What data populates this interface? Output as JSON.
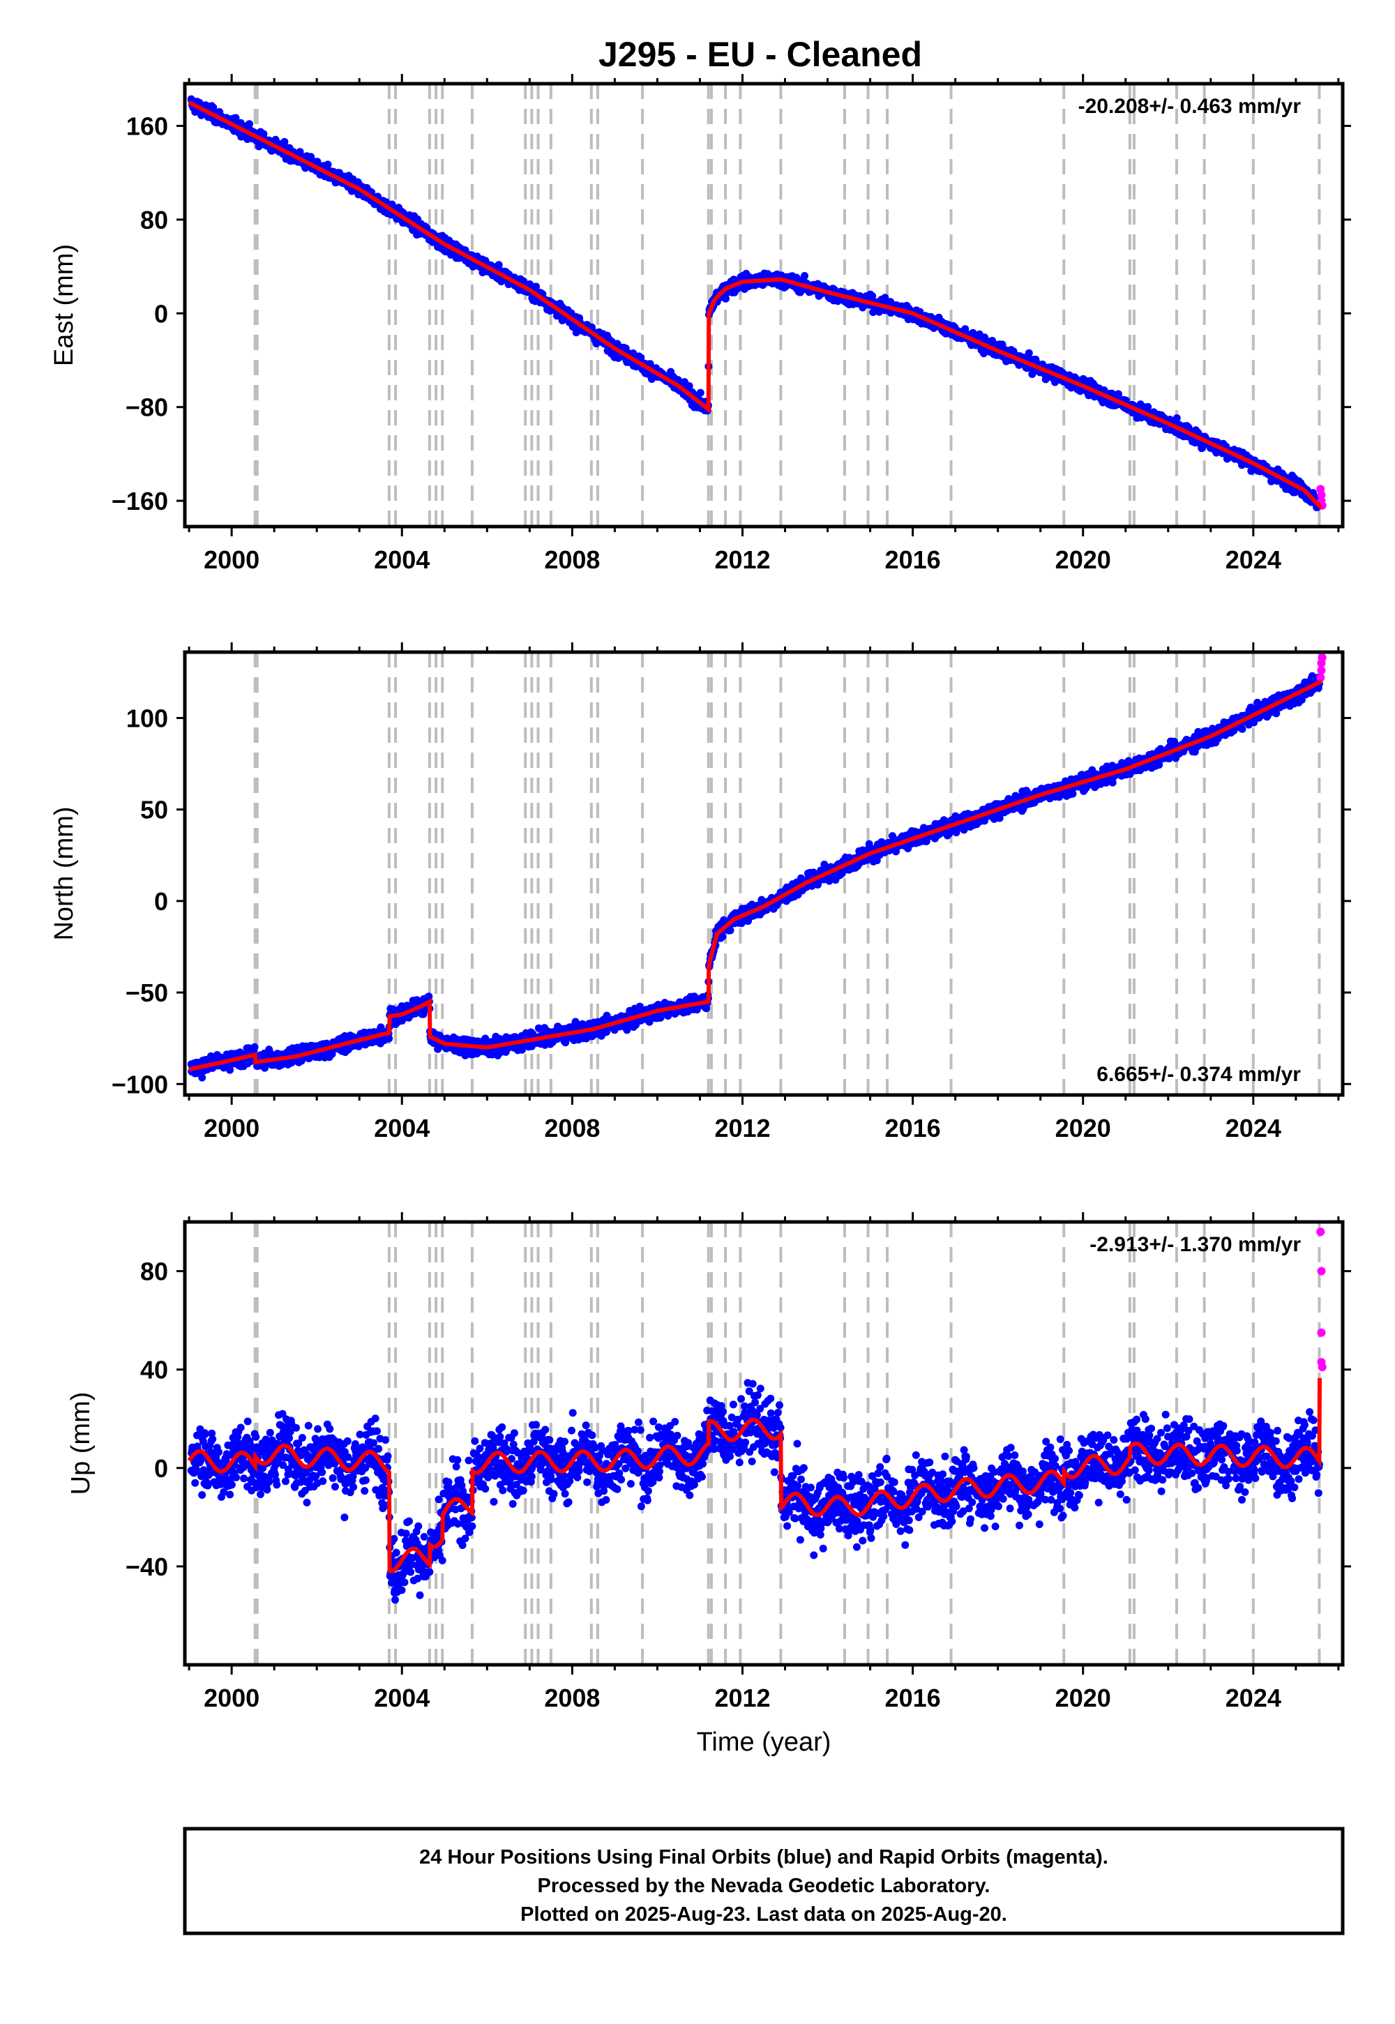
{
  "title": "J295  - EU - Cleaned",
  "xlabel": "Time (year)",
  "footer": {
    "line1": "24 Hour Positions Using Final Orbits (blue) and Rapid Orbits (magenta).",
    "line2": "Processed by the Nevada Geodetic Laboratory.",
    "line3": "Plotted on 2025-Aug-23. Last data on 2025-Aug-20."
  },
  "colors": {
    "final": "#0000ff",
    "rapid": "#ff00ff",
    "model": "#ff0000",
    "event": "#bdbdbd",
    "axis": "#000000"
  },
  "chart_data": [
    {
      "type": "scatter",
      "ylabel": "East (mm)",
      "rate": "-20.208+/- 0.463 mm/yr",
      "rate_position": "top-right",
      "xlim": [
        1998.9,
        2026.1
      ],
      "ylim": [
        -182,
        196
      ],
      "xticks": [
        2000,
        2004,
        2008,
        2012,
        2016,
        2020,
        2024
      ],
      "yticks": [
        -160,
        -80,
        0,
        80,
        160
      ],
      "ytick_labels": [
        "−160",
        "−80",
        "0",
        "80",
        "160"
      ],
      "event_years": [
        2000.55,
        2000.6,
        2003.7,
        2003.85,
        2004.65,
        2004.8,
        2004.95,
        2005.65,
        2006.9,
        2007.05,
        2007.2,
        2007.5,
        2008.45,
        2008.6,
        2009.65,
        2011.2,
        2011.27,
        2011.6,
        2011.95,
        2012.9,
        2014.4,
        2014.95,
        2015.4,
        2016.9,
        2019.55,
        2021.1,
        2021.2,
        2022.2,
        2022.85,
        2024.0,
        2025.55
      ],
      "model": [
        {
          "x": 1999.0,
          "y": 180
        },
        {
          "x": 2001.0,
          "y": 143
        },
        {
          "x": 2003.0,
          "y": 106
        },
        {
          "x": 2005.0,
          "y": 59
        },
        {
          "x": 2007.0,
          "y": 20
        },
        {
          "x": 2009.0,
          "y": -30
        },
        {
          "x": 2010.5,
          "y": -62
        },
        {
          "x": 2011.2,
          "y": -82
        },
        {
          "x": 2011.21,
          "y": 0
        },
        {
          "x": 2011.35,
          "y": 12
        },
        {
          "x": 2011.6,
          "y": 21
        },
        {
          "x": 2012.0,
          "y": 27
        },
        {
          "x": 2012.9,
          "y": 29
        },
        {
          "x": 2014.0,
          "y": 18
        },
        {
          "x": 2016.0,
          "y": 0
        },
        {
          "x": 2018.0,
          "y": -32
        },
        {
          "x": 2020.0,
          "y": -62
        },
        {
          "x": 2022.0,
          "y": -94
        },
        {
          "x": 2024.0,
          "y": -128
        },
        {
          "x": 2025.2,
          "y": -151
        },
        {
          "x": 2025.6,
          "y": -166
        }
      ],
      "scatter": 4,
      "rapid": [
        {
          "x": 2025.58,
          "y": -150
        },
        {
          "x": 2025.6,
          "y": -155
        },
        {
          "x": 2025.6,
          "y": -160
        },
        {
          "x": 2025.62,
          "y": -164
        }
      ]
    },
    {
      "type": "scatter",
      "ylabel": "North (mm)",
      "rate": "6.665+/- 0.374 mm/yr",
      "rate_position": "bottom-right",
      "xlim": [
        1998.9,
        2026.1
      ],
      "ylim": [
        -106,
        136
      ],
      "xticks": [
        2000,
        2004,
        2008,
        2012,
        2016,
        2020,
        2024
      ],
      "yticks": [
        -100,
        -50,
        0,
        50,
        100
      ],
      "ytick_labels": [
        "−100",
        "−50",
        "0",
        "50",
        "100"
      ],
      "event_years": [
        2000.55,
        2000.6,
        2003.7,
        2003.85,
        2004.65,
        2004.8,
        2004.95,
        2005.65,
        2006.9,
        2007.05,
        2007.2,
        2007.5,
        2008.45,
        2008.6,
        2009.65,
        2011.2,
        2011.27,
        2011.6,
        2011.95,
        2012.9,
        2014.4,
        2014.95,
        2015.4,
        2016.9,
        2019.55,
        2021.1,
        2021.2,
        2022.2,
        2022.85,
        2024.0,
        2025.55
      ],
      "model": [
        {
          "x": 1999.0,
          "y": -92
        },
        {
          "x": 2000.0,
          "y": -87
        },
        {
          "x": 2000.55,
          "y": -84
        },
        {
          "x": 2000.56,
          "y": -88
        },
        {
          "x": 2001.5,
          "y": -85
        },
        {
          "x": 2003.0,
          "y": -76
        },
        {
          "x": 2003.7,
          "y": -72
        },
        {
          "x": 2003.71,
          "y": -63
        },
        {
          "x": 2004.0,
          "y": -62
        },
        {
          "x": 2004.5,
          "y": -57
        },
        {
          "x": 2004.65,
          "y": -55
        },
        {
          "x": 2004.66,
          "y": -74
        },
        {
          "x": 2005.0,
          "y": -78
        },
        {
          "x": 2006.0,
          "y": -80
        },
        {
          "x": 2007.0,
          "y": -76
        },
        {
          "x": 2008.5,
          "y": -70
        },
        {
          "x": 2010.0,
          "y": -60
        },
        {
          "x": 2011.2,
          "y": -55
        },
        {
          "x": 2011.21,
          "y": -35
        },
        {
          "x": 2011.4,
          "y": -18
        },
        {
          "x": 2011.8,
          "y": -10
        },
        {
          "x": 2012.5,
          "y": -3
        },
        {
          "x": 2013.5,
          "y": 10
        },
        {
          "x": 2015.0,
          "y": 26
        },
        {
          "x": 2017.0,
          "y": 42
        },
        {
          "x": 2019.0,
          "y": 58
        },
        {
          "x": 2021.0,
          "y": 72
        },
        {
          "x": 2023.0,
          "y": 90
        },
        {
          "x": 2025.6,
          "y": 120
        }
      ],
      "scatter": 3,
      "rapid": [
        {
          "x": 2025.58,
          "y": 122
        },
        {
          "x": 2025.6,
          "y": 126
        },
        {
          "x": 2025.6,
          "y": 130
        },
        {
          "x": 2025.62,
          "y": 133
        }
      ]
    },
    {
      "type": "scatter",
      "ylabel": "Up (mm)",
      "rate": "-2.913+/- 1.370 mm/yr",
      "rate_position": "top-right",
      "xlim": [
        1998.9,
        2026.1
      ],
      "ylim": [
        -80,
        100
      ],
      "xticks": [
        2000,
        2004,
        2008,
        2012,
        2016,
        2020,
        2024
      ],
      "yticks": [
        -40,
        0,
        40,
        80
      ],
      "ytick_labels": [
        "−40",
        "0",
        "40",
        "80"
      ],
      "event_years": [
        2000.55,
        2000.6,
        2003.7,
        2003.85,
        2004.65,
        2004.8,
        2004.95,
        2005.65,
        2006.9,
        2007.05,
        2007.2,
        2007.5,
        2008.45,
        2008.6,
        2009.65,
        2011.2,
        2011.27,
        2011.6,
        2011.95,
        2012.9,
        2014.4,
        2014.95,
        2015.4,
        2016.9,
        2019.55,
        2021.1,
        2021.2,
        2022.2,
        2022.85,
        2024.0,
        2025.55
      ],
      "model": [
        {
          "x": 1999.0,
          "y": 3
        },
        {
          "x": 2000.55,
          "y": 2
        },
        {
          "x": 2000.56,
          "y": 6
        },
        {
          "x": 2003.7,
          "y": 2
        },
        {
          "x": 2003.71,
          "y": -38
        },
        {
          "x": 2004.65,
          "y": -36
        },
        {
          "x": 2004.66,
          "y": -28
        },
        {
          "x": 2004.95,
          "y": -28
        },
        {
          "x": 2004.96,
          "y": -18
        },
        {
          "x": 2005.65,
          "y": -15
        },
        {
          "x": 2005.66,
          "y": 2
        },
        {
          "x": 2009.0,
          "y": 3
        },
        {
          "x": 2011.2,
          "y": 6
        },
        {
          "x": 2011.21,
          "y": 15
        },
        {
          "x": 2012.9,
          "y": 16
        },
        {
          "x": 2012.91,
          "y": -14
        },
        {
          "x": 2014.4,
          "y": -16
        },
        {
          "x": 2016.9,
          "y": -9
        },
        {
          "x": 2019.55,
          "y": -5
        },
        {
          "x": 2019.56,
          "y": 0
        },
        {
          "x": 2021.1,
          "y": 2
        },
        {
          "x": 2021.11,
          "y": 6
        },
        {
          "x": 2025.55,
          "y": 4
        },
        {
          "x": 2025.56,
          "y": 38
        }
      ],
      "seasonal_amp": 4,
      "scatter": 9,
      "rapid": [
        {
          "x": 2025.58,
          "y": 96
        },
        {
          "x": 2025.6,
          "y": 80
        },
        {
          "x": 2025.6,
          "y": 55
        },
        {
          "x": 2025.6,
          "y": 43
        },
        {
          "x": 2025.62,
          "y": 41
        }
      ]
    }
  ]
}
